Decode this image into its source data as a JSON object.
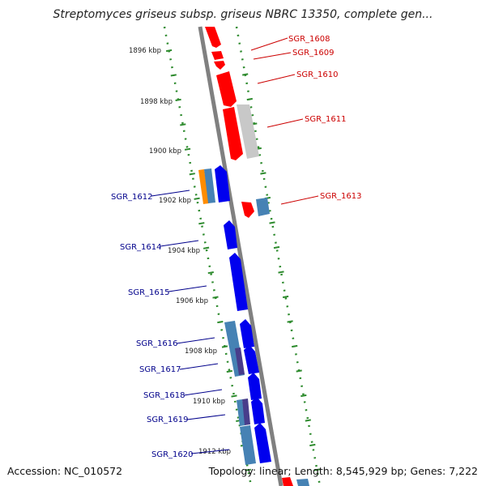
{
  "title": "Streptomyces griseus subsp. griseus NBRC 13350, complete gen...",
  "footer": {
    "accession": "Accession: NC_010572",
    "summary": "Topology: linear; Length: 8,545,929 bp; Genes: 7,222"
  },
  "colors": {
    "axis": "#8a8a8a",
    "ruler": "#2e8b2e",
    "top_strand_label": "#cc0000",
    "bottom_strand_label": "#00008b",
    "red_gene": "#ff0000",
    "grey_gene": "#c8c8c8",
    "blue_gene": "#0000ee",
    "steel_gene": "#4682b4",
    "orange_gene": "#ff8c00",
    "purple_gene": "#483d8b"
  },
  "kbp_ticks": [
    "1896 kbp",
    "1898 kbp",
    "1900 kbp",
    "1902 kbp",
    "1904 kbp",
    "1906 kbp",
    "1908 kbp",
    "1910 kbp",
    "1912 kbp"
  ],
  "gene_labels_right": [
    "SGR_1608",
    "SGR_1609",
    "SGR_1610",
    "SGR_1611",
    "SGR_1613"
  ],
  "gene_labels_left": [
    "SGR_1612",
    "SGR_1614",
    "SGR_1615",
    "SGR_1616",
    "SGR_1617",
    "SGR_1618",
    "SGR_1619",
    "SGR_1620"
  ]
}
